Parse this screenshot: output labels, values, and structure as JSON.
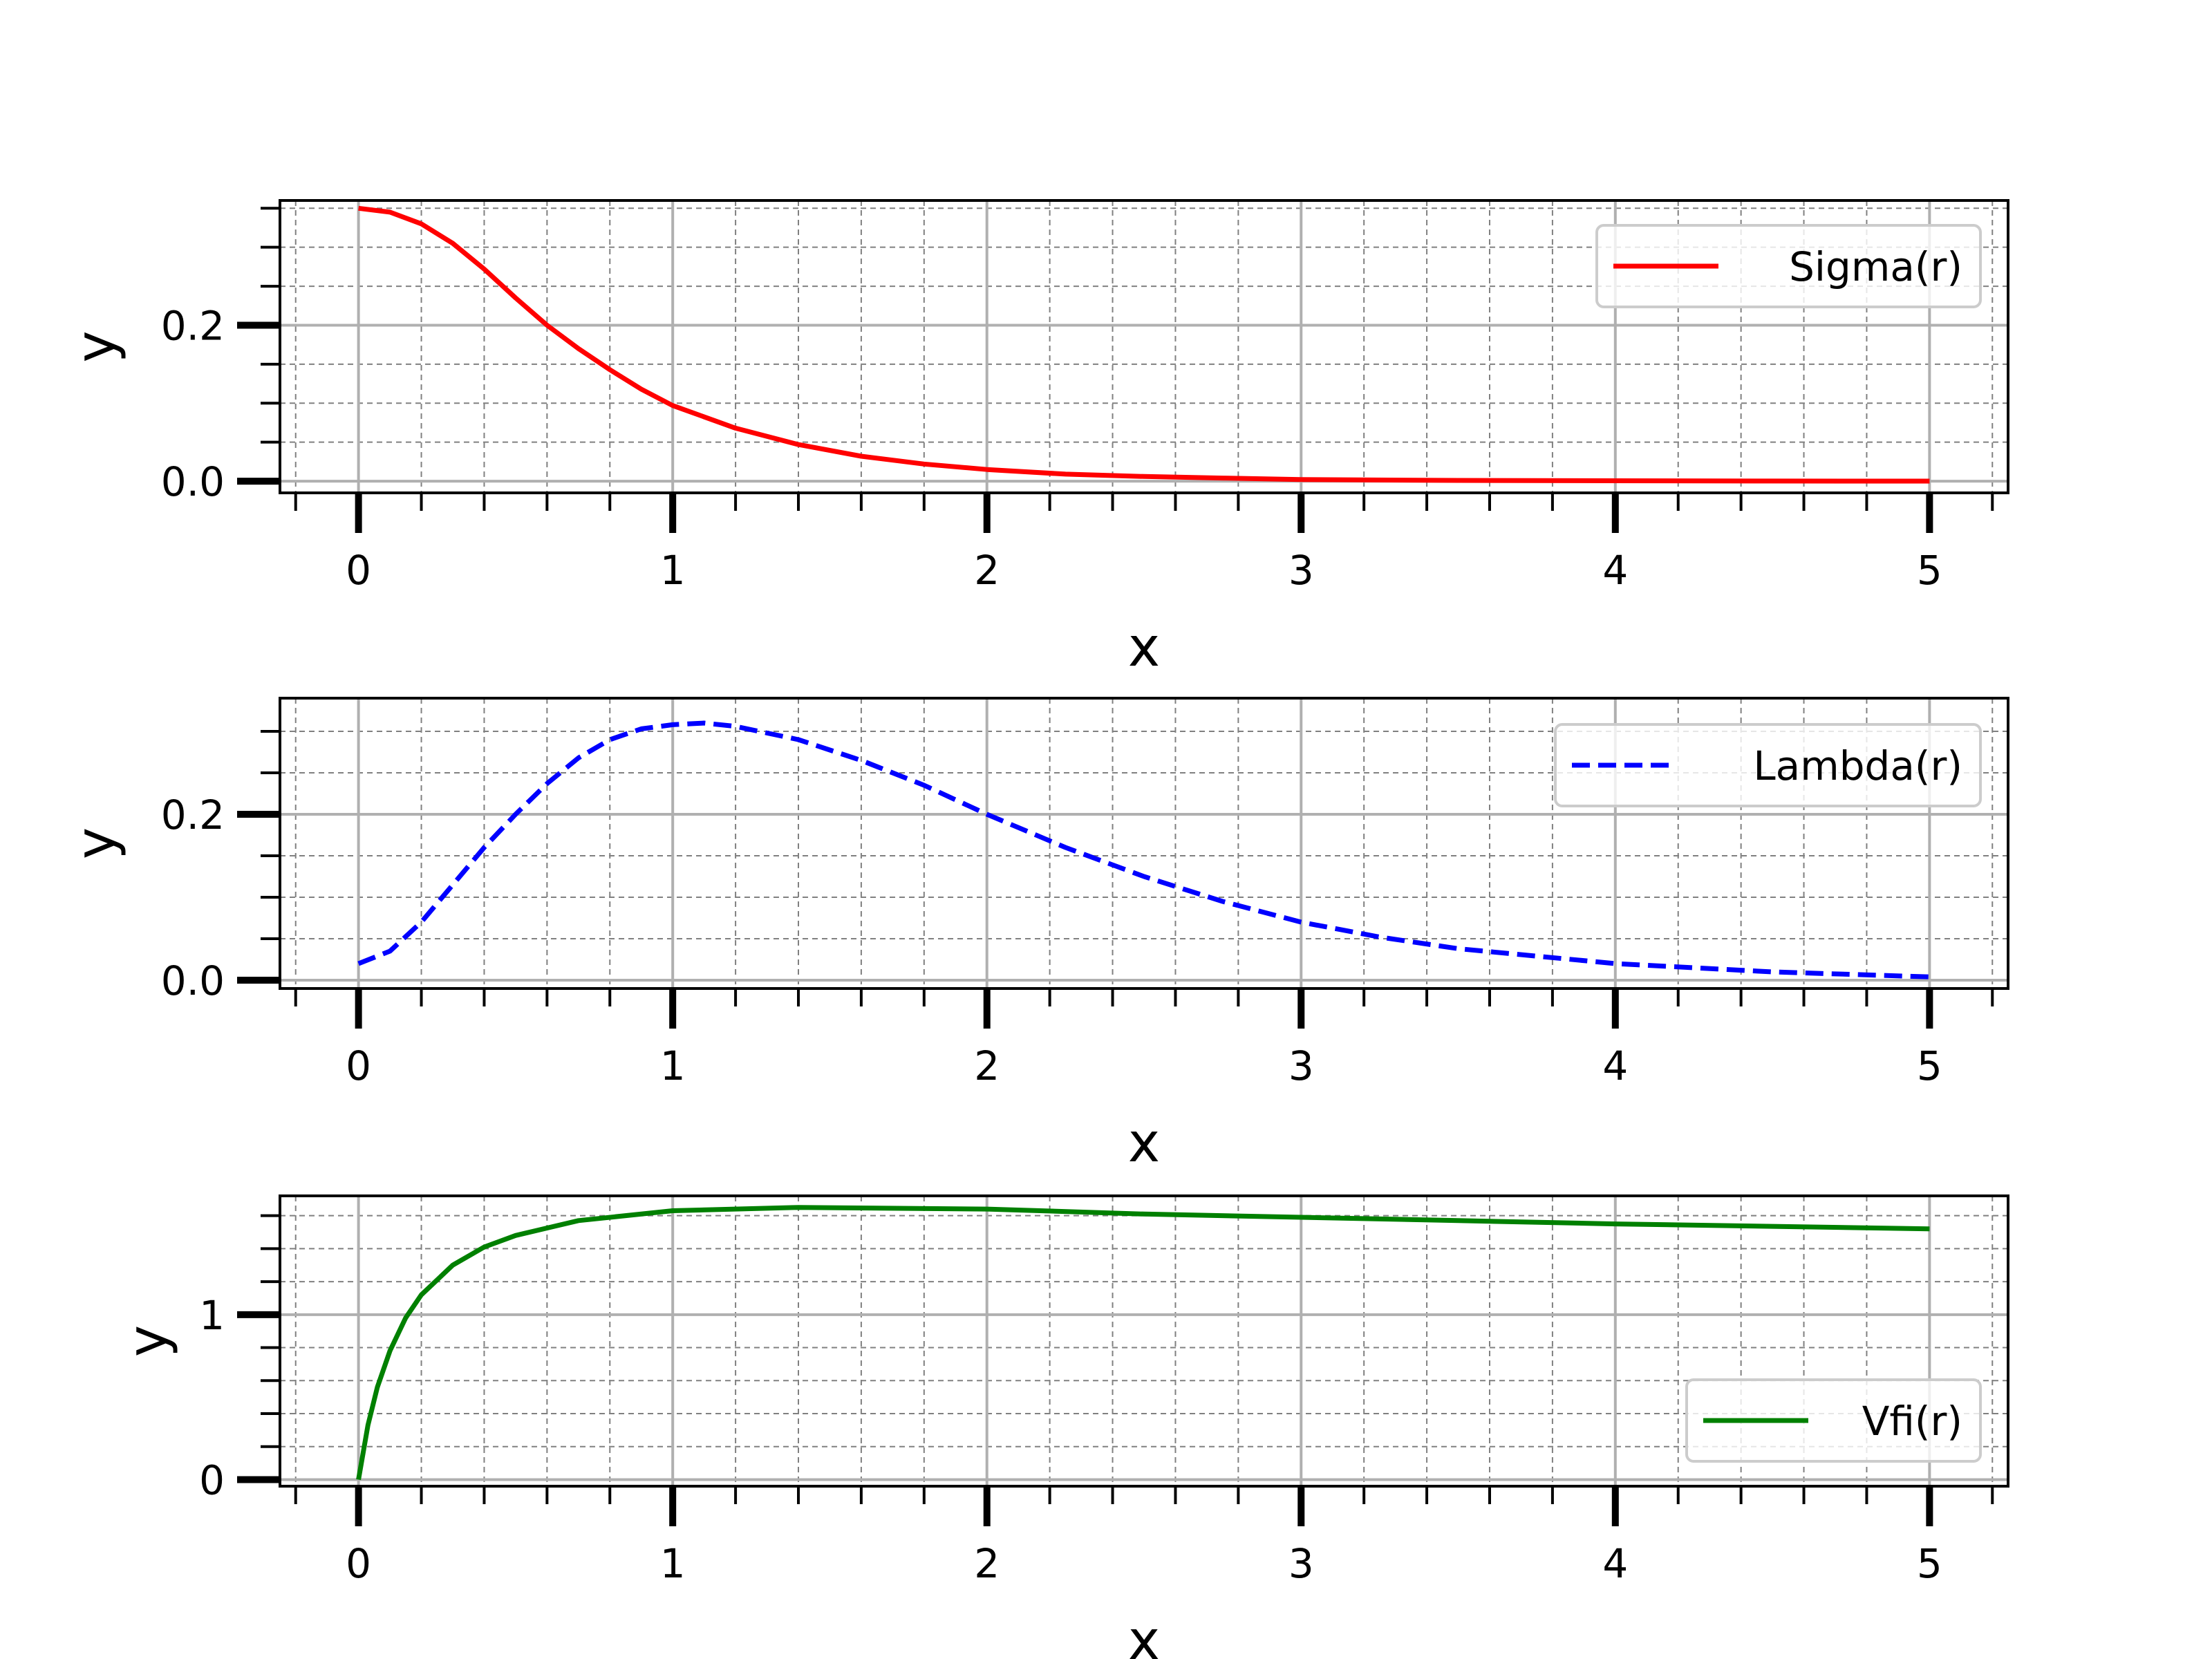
{
  "chart_data": [
    {
      "type": "line",
      "xlabel": "x",
      "ylabel": "y",
      "xlim": [
        -0.25,
        5.25
      ],
      "ylim": [
        -0.015,
        0.36
      ],
      "x_ticks": [
        0,
        1,
        2,
        3,
        4,
        5
      ],
      "x_tick_labels": [
        "0",
        "1",
        "2",
        "3",
        "4",
        "5"
      ],
      "y_ticks": [
        0.0,
        0.2
      ],
      "y_tick_labels": [
        "0.0",
        "0.2"
      ],
      "y_minor_step": 0.05,
      "grid": true,
      "legend_position": "upper-right",
      "series": [
        {
          "name": "Sigma(r)",
          "color": "#ff0000",
          "style": "solid",
          "x": [
            0,
            0.1,
            0.2,
            0.3,
            0.4,
            0.5,
            0.6,
            0.7,
            0.8,
            0.9,
            1.0,
            1.2,
            1.4,
            1.6,
            1.8,
            2.0,
            2.25,
            2.5,
            2.75,
            3.0,
            3.5,
            4.0,
            4.5,
            5.0
          ],
          "y": [
            0.35,
            0.345,
            0.33,
            0.305,
            0.272,
            0.235,
            0.2,
            0.17,
            0.143,
            0.118,
            0.097,
            0.068,
            0.047,
            0.032,
            0.022,
            0.015,
            0.009,
            0.006,
            0.004,
            0.002,
            0.001,
            0.0005,
            0.0002,
            0.0001
          ]
        }
      ]
    },
    {
      "type": "line",
      "xlabel": "x",
      "ylabel": "y",
      "xlim": [
        -0.25,
        5.25
      ],
      "ylim": [
        -0.01,
        0.34
      ],
      "x_ticks": [
        0,
        1,
        2,
        3,
        4,
        5
      ],
      "x_tick_labels": [
        "0",
        "1",
        "2",
        "3",
        "4",
        "5"
      ],
      "y_ticks": [
        0.0,
        0.2
      ],
      "y_tick_labels": [
        "0.0",
        "0.2"
      ],
      "y_minor_step": 0.05,
      "grid": true,
      "legend_position": "upper-right",
      "series": [
        {
          "name": "Lambda(r)",
          "color": "#0000ff",
          "style": "dashed",
          "x": [
            0,
            0.1,
            0.2,
            0.3,
            0.4,
            0.5,
            0.6,
            0.7,
            0.8,
            0.9,
            1.0,
            1.1,
            1.2,
            1.4,
            1.6,
            1.8,
            2.0,
            2.25,
            2.5,
            2.75,
            3.0,
            3.25,
            3.5,
            4.0,
            4.5,
            5.0
          ],
          "y": [
            0.02,
            0.035,
            0.07,
            0.115,
            0.16,
            0.2,
            0.237,
            0.268,
            0.29,
            0.303,
            0.308,
            0.31,
            0.306,
            0.29,
            0.265,
            0.235,
            0.2,
            0.16,
            0.125,
            0.095,
            0.07,
            0.052,
            0.038,
            0.02,
            0.01,
            0.004
          ]
        }
      ]
    },
    {
      "type": "line",
      "xlabel": "x",
      "ylabel": "y",
      "xlim": [
        -0.25,
        5.25
      ],
      "ylim": [
        -0.04,
        1.72
      ],
      "x_ticks": [
        0,
        1,
        2,
        3,
        4,
        5
      ],
      "x_tick_labels": [
        "0",
        "1",
        "2",
        "3",
        "4",
        "5"
      ],
      "y_ticks": [
        0,
        1
      ],
      "y_tick_labels": [
        "0",
        "1"
      ],
      "y_minor_step": 0.2,
      "grid": true,
      "legend_position": "lower-right",
      "series": [
        {
          "name": "Vfi(r)",
          "color": "#008000",
          "style": "solid",
          "x": [
            0,
            0.03,
            0.06,
            0.1,
            0.15,
            0.2,
            0.3,
            0.4,
            0.5,
            0.7,
            1.0,
            1.4,
            2.0,
            2.5,
            3.0,
            3.5,
            4.0,
            4.5,
            5.0
          ],
          "y": [
            0.0,
            0.33,
            0.56,
            0.78,
            0.98,
            1.12,
            1.3,
            1.41,
            1.48,
            1.57,
            1.63,
            1.65,
            1.64,
            1.61,
            1.59,
            1.57,
            1.55,
            1.535,
            1.52
          ]
        }
      ]
    }
  ]
}
